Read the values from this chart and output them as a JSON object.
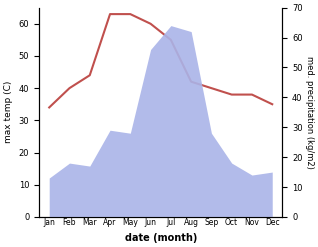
{
  "months": [
    "Jan",
    "Feb",
    "Mar",
    "Apr",
    "May",
    "Jun",
    "Jul",
    "Aug",
    "Sep",
    "Oct",
    "Nov",
    "Dec"
  ],
  "temperature": [
    34,
    40,
    44,
    63,
    63,
    60,
    55,
    42,
    40,
    38,
    38,
    35
  ],
  "precipitation": [
    13,
    18,
    17,
    29,
    28,
    56,
    64,
    62,
    28,
    18,
    14,
    15
  ],
  "temp_color": "#c0504d",
  "precip_color": "#aab4e8",
  "ylabel_left": "max temp (C)",
  "ylabel_right": "med. precipitation (kg/m2)",
  "xlabel": "date (month)",
  "ylim_left": [
    0,
    65
  ],
  "ylim_right": [
    0,
    70
  ],
  "yticks_left": [
    0,
    10,
    20,
    30,
    40,
    50,
    60
  ],
  "yticks_right": [
    0,
    10,
    20,
    30,
    40,
    50,
    60,
    70
  ],
  "bg_color": "#ffffff"
}
